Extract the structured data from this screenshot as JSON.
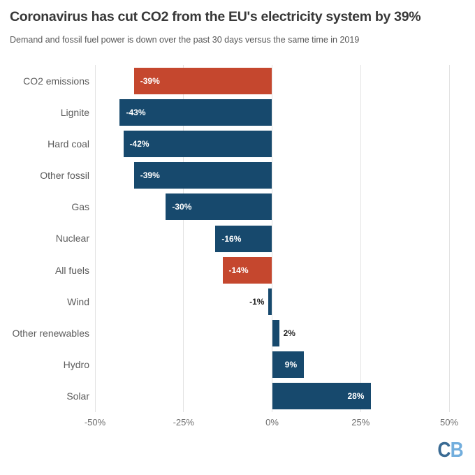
{
  "header": {
    "title": "Coronavirus has cut CO2 from the EU's electricity system by 39%",
    "subtitle": "Demand and fossil fuel power is down over the past 30 days versus the same time in 2019"
  },
  "chart_data": {
    "type": "bar",
    "orientation": "horizontal",
    "title": "Coronavirus has cut CO2 from the EU's electricity system by 39%",
    "subtitle": "Demand and fossil fuel power is down over the past 30 days versus the same time in 2019",
    "categories": [
      "CO2 emissions",
      "Lignite",
      "Hard coal",
      "Other fossil",
      "Gas",
      "Nuclear",
      "All fuels",
      "Wind",
      "Other renewables",
      "Hydro",
      "Solar"
    ],
    "values": [
      -39,
      -43,
      -42,
      -39,
      -30,
      -16,
      -14,
      -1,
      2,
      9,
      28
    ],
    "value_labels": [
      "-39%",
      "-43%",
      "-42%",
      "-39%",
      "-30%",
      "-16%",
      "-14%",
      "-1%",
      "2%",
      "9%",
      "28%"
    ],
    "highlighted": [
      true,
      false,
      false,
      false,
      false,
      false,
      true,
      false,
      false,
      false,
      false
    ],
    "value_label_inside": [
      true,
      true,
      true,
      true,
      true,
      true,
      true,
      false,
      false,
      true,
      true
    ],
    "xlim": [
      -50,
      50
    ],
    "x_ticks": [
      "-50%",
      "-25%",
      "0%",
      "25%",
      "50%"
    ],
    "grid": true,
    "legend": "none",
    "colors": {
      "bar": "#17496d",
      "highlight": "#c5472e",
      "value_inside": "#ffffff",
      "value_outside": "#1f1f1f",
      "grid": "#e3e3e3",
      "title": "#383838",
      "subtitle": "#585858",
      "category": "#5c5c5c",
      "axis": "#6e6e6e",
      "logo_c": "#3a6b94",
      "logo_b": "#72aedd"
    }
  },
  "footer": {
    "logo_c": "C",
    "logo_b": "B"
  }
}
